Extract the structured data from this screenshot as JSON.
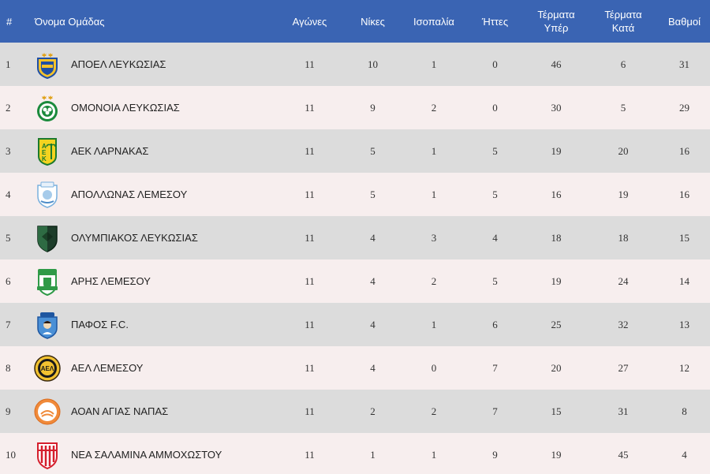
{
  "headers": {
    "pos": "#",
    "team": "Όνομα Ομάδας",
    "played": "Αγώνες",
    "wins": "Νίκες",
    "draws": "Ισοπαλία",
    "losses": "Ήττες",
    "goals_for_1": "Τέρματα",
    "goals_for_2": "Υπέρ",
    "goals_against_1": "Τέρματα",
    "goals_against_2": "Κατά",
    "points": "Βαθμοί"
  },
  "rows": [
    {
      "pos": "1",
      "team": "ΑΠΟΕΛ ΛΕΥΚΩΣΙΑΣ",
      "icon": "apoel-crest-icon",
      "played": "11",
      "wins": "10",
      "draws": "1",
      "losses": "0",
      "gf": "46",
      "ga": "6",
      "pts": "31"
    },
    {
      "pos": "2",
      "team": "ΟΜΟΝΟΙΑ ΛΕΥΚΩΣΙΑΣ",
      "icon": "omonoia-crest-icon",
      "played": "11",
      "wins": "9",
      "draws": "2",
      "losses": "0",
      "gf": "30",
      "ga": "5",
      "pts": "29"
    },
    {
      "pos": "3",
      "team": "ΑΕΚ ΛΑΡΝΑΚΑΣ",
      "icon": "aek-crest-icon",
      "played": "11",
      "wins": "5",
      "draws": "1",
      "losses": "5",
      "gf": "19",
      "ga": "20",
      "pts": "16"
    },
    {
      "pos": "4",
      "team": "ΑΠΟΛΛΩΝΑΣ ΛΕΜΕΣΟΥ",
      "icon": "apollon-crest-icon",
      "played": "11",
      "wins": "5",
      "draws": "1",
      "losses": "5",
      "gf": "16",
      "ga": "19",
      "pts": "16"
    },
    {
      "pos": "5",
      "team": "ΟΛΥΜΠΙΑΚΟΣ ΛΕΥΚΩΣΙΑΣ",
      "icon": "olympiakos-crest-icon",
      "played": "11",
      "wins": "4",
      "draws": "3",
      "losses": "4",
      "gf": "18",
      "ga": "18",
      "pts": "15"
    },
    {
      "pos": "6",
      "team": "ΑΡΗΣ ΛΕΜΕΣΟΥ",
      "icon": "aris-crest-icon",
      "played": "11",
      "wins": "4",
      "draws": "2",
      "losses": "5",
      "gf": "19",
      "ga": "24",
      "pts": "14"
    },
    {
      "pos": "7",
      "team": "ΠΑΦΟΣ F.C.",
      "icon": "pafos-crest-icon",
      "played": "11",
      "wins": "4",
      "draws": "1",
      "losses": "6",
      "gf": "25",
      "ga": "32",
      "pts": "13"
    },
    {
      "pos": "8",
      "team": "ΑΕΛ ΛΕΜΕΣΟΥ",
      "icon": "ael-crest-icon",
      "played": "11",
      "wins": "4",
      "draws": "0",
      "losses": "7",
      "gf": "20",
      "ga": "27",
      "pts": "12"
    },
    {
      "pos": "9",
      "team": "ΑΟΑΝ ΑΓΙΑΣ ΝΑΠΑΣ",
      "icon": "aoan-crest-icon",
      "played": "11",
      "wins": "2",
      "draws": "2",
      "losses": "7",
      "gf": "15",
      "ga": "31",
      "pts": "8"
    },
    {
      "pos": "10",
      "team": "ΝΕΑ ΣΑΛΑΜΙΝΑ ΑΜΜΟΧΩΣΤΟΥ",
      "icon": "nea-salamina-crest-icon",
      "played": "11",
      "wins": "1",
      "draws": "1",
      "losses": "9",
      "gf": "19",
      "ga": "45",
      "pts": "4"
    }
  ],
  "colors": {
    "header_bg": "#3a64b3",
    "row_odd": "#dcdcdc",
    "row_even": "#f7eeee"
  }
}
